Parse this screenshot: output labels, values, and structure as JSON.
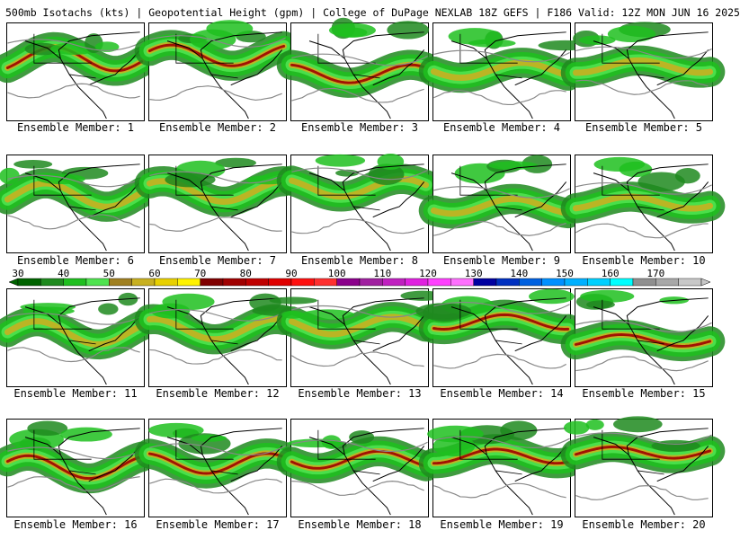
{
  "header": {
    "title": "500mb Isotachs (kts) | Geopotential Height (gpm) | College of DuPage NEXLAB   18Z GEFS | F186 Valid: 12Z MON JUN 16 2025"
  },
  "colorbar": {
    "tick_labels": [
      "30",
      "40",
      "50",
      "60",
      "70",
      "80",
      "90",
      "100",
      "110",
      "120",
      "130",
      "140",
      "150",
      "160",
      "170"
    ],
    "colors": [
      "#006400",
      "#1f8a1f",
      "#1fbf1f",
      "#4fe34f",
      "#a08020",
      "#c8b020",
      "#e8d000",
      "#fff200",
      "#800000",
      "#a00000",
      "#c00000",
      "#e00000",
      "#ff1010",
      "#ff3030",
      "#8b008b",
      "#a020a0",
      "#c020c0",
      "#e020e0",
      "#ff40ff",
      "#ff70ff",
      "#0000a0",
      "#0030c0",
      "#0060e0",
      "#0090ff",
      "#00b0ff",
      "#00d0ff",
      "#00ffff",
      "#909090",
      "#a8a8a8",
      "#c8c8c8"
    ]
  },
  "panels": [
    {
      "label": "Ensemble Member: 1"
    },
    {
      "label": "Ensemble Member: 2"
    },
    {
      "label": "Ensemble Member: 3"
    },
    {
      "label": "Ensemble Member: 4"
    },
    {
      "label": "Ensemble Member: 5"
    },
    {
      "label": "Ensemble Member: 6"
    },
    {
      "label": "Ensemble Member: 7"
    },
    {
      "label": "Ensemble Member: 8"
    },
    {
      "label": "Ensemble Member: 9"
    },
    {
      "label": "Ensemble Member: 10"
    },
    {
      "label": "Ensemble Member: 11"
    },
    {
      "label": "Ensemble Member: 12"
    },
    {
      "label": "Ensemble Member: 13"
    },
    {
      "label": "Ensemble Member: 14"
    },
    {
      "label": "Ensemble Member: 15"
    },
    {
      "label": "Ensemble Member: 16"
    },
    {
      "label": "Ensemble Member: 17"
    },
    {
      "label": "Ensemble Member: 18"
    },
    {
      "label": "Ensemble Member: 19"
    },
    {
      "label": "Ensemble Member: 20"
    }
  ]
}
